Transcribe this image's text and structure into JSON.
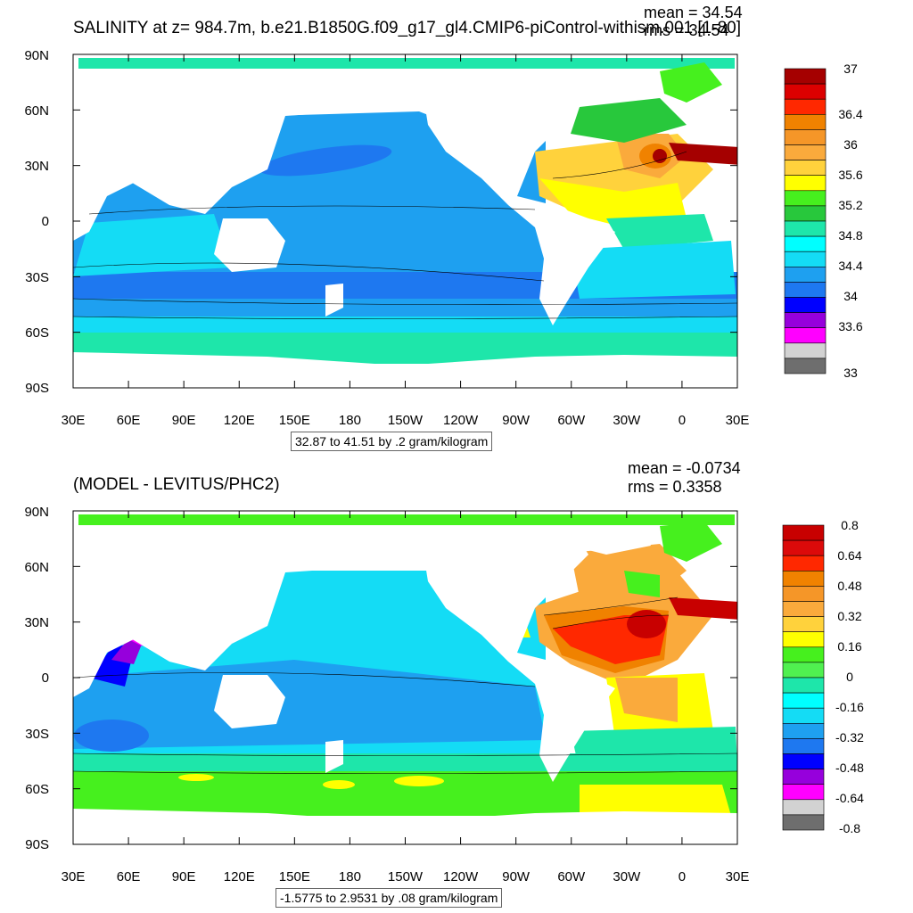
{
  "panels": [
    {
      "title": "SALINITY at z= 984.7m, b.e21.B1850G.f09_g17_gl4.CMIP6-piControl-withism.001 [1-80]",
      "mean_text": "mean = 34.54",
      "rms_text": "rms = 34.54",
      "range_text": "32.87 to 41.51 by .2 gram/kilogram",
      "colorbar": {
        "labels": [
          "37",
          "36.4",
          "36",
          "35.6",
          "35.2",
          "34.8",
          "34.4",
          "34",
          "33.6",
          "33"
        ],
        "colors": [
          "#a50000",
          "#dc0000",
          "#ff2800",
          "#f08200",
          "#f59628",
          "#faaa3c",
          "#ffd23c",
          "#ffff00",
          "#46f01e",
          "#28c83c",
          "#1ee6aa",
          "#00ffff",
          "#14dcf5",
          "#1ea0f0",
          "#1e78f0",
          "#0000ff",
          "#9600dc",
          "#ff00ff",
          "#d2d2d2",
          "#6e6e6e"
        ]
      }
    },
    {
      "title": "(MODEL - LEVITUS/PHC2)",
      "mean_text": "mean = -0.0734",
      "rms_text": "rms = 0.3358",
      "range_text": "-1.5775 to 2.9531 by .08 gram/kilogram",
      "colorbar": {
        "labels": [
          "0.8",
          "0.64",
          "0.48",
          "0.32",
          "0.16",
          "0",
          "-0.16",
          "-0.32",
          "-0.48",
          "-0.64",
          "-0.8"
        ],
        "colors": [
          "#c80000",
          "#dc0a0a",
          "#ff2800",
          "#f08200",
          "#f59628",
          "#faaa3c",
          "#ffd23c",
          "#ffff00",
          "#46f01e",
          "#50f050",
          "#1ee6aa",
          "#00ffff",
          "#14dcf5",
          "#1ea0f0",
          "#1e78f0",
          "#0000ff",
          "#9600dc",
          "#ff00ff",
          "#d2d2d2",
          "#6e6e6e"
        ]
      }
    }
  ],
  "lat_labels": [
    "90N",
    "60N",
    "30N",
    "0",
    "30S",
    "60S",
    "90S"
  ],
  "lon_labels": [
    "30E",
    "60E",
    "90E",
    "120E",
    "150E",
    "180",
    "150W",
    "120W",
    "90W",
    "60W",
    "30W",
    "0",
    "30E"
  ]
}
